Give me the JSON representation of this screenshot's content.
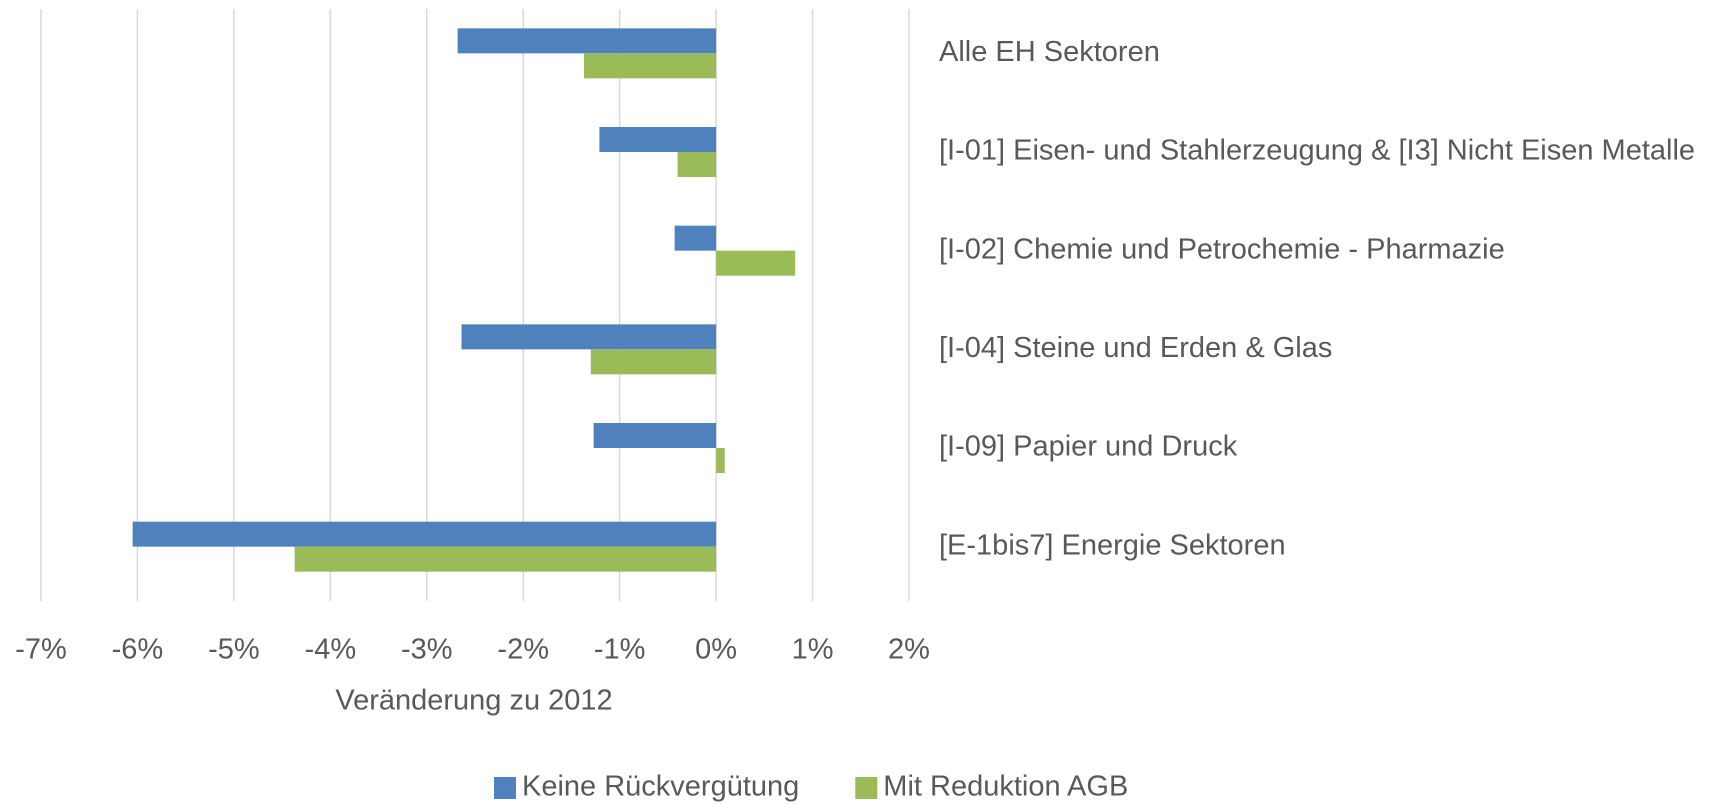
{
  "chart_data": {
    "type": "barh",
    "x_label": "Veränderung zu 2012",
    "categories": [
      "Alle EH Sektoren",
      "[I-01] Eisen- und Stahlerzeugung & [I3] Nicht Eisen Metalle",
      "[I-02] Chemie und  Petrochemie - Pharmazie",
      "[I-04] Steine und Erden & Glas",
      "[I-09] Papier und Druck",
      "[E-1bis7] Energie Sektoren"
    ],
    "series": [
      {
        "name": "Keine Rückvergütung",
        "color": "#4f81bd",
        "values": [
          -2.68,
          -1.21,
          -0.43,
          -2.64,
          -1.27,
          -6.05
        ]
      },
      {
        "name": "Mit Reduktion AGB",
        "color": "#9bbb59",
        "values": [
          -1.37,
          -0.4,
          0.82,
          -1.3,
          0.09,
          -4.37
        ]
      }
    ],
    "xlim": [
      -7,
      2
    ],
    "xticks": [
      {
        "value": -7,
        "label": "-7%"
      },
      {
        "value": -6,
        "label": "-6%"
      },
      {
        "value": -5,
        "label": "-5%"
      },
      {
        "value": -4,
        "label": "-4%"
      },
      {
        "value": -3,
        "label": "-3%"
      },
      {
        "value": -2,
        "label": "-2%"
      },
      {
        "value": -1,
        "label": "-1%"
      },
      {
        "value": 0,
        "label": "0%"
      },
      {
        "value": 1,
        "label": "1%"
      },
      {
        "value": 2,
        "label": "2%"
      }
    ],
    "grid": true,
    "legend": "bottom"
  }
}
